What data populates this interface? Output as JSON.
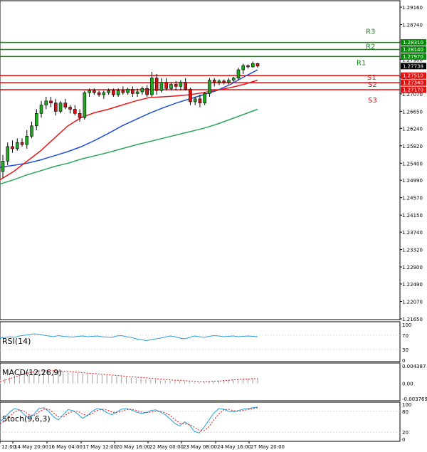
{
  "chart_data": {
    "type": "candlestick",
    "instrument_timeframe": "H4",
    "main": {
      "price_axis": {
        "ticks": [
          "1.29160",
          "1.28740",
          "1.28320",
          "1.27900",
          "1.27480",
          "1.27070",
          "1.26650",
          "1.26240",
          "1.25820",
          "1.25400",
          "1.24990",
          "1.24570",
          "1.24150",
          "1.23740",
          "1.23320",
          "1.22900",
          "1.22490",
          "1.22070",
          "1.21650"
        ],
        "range": [
          1.2165,
          1.2916
        ]
      },
      "current_price_label": "1.27738",
      "levels": [
        {
          "label": "R3",
          "price": 1.2831,
          "price_label": "1.28310",
          "color": "#0a8a0a"
        },
        {
          "label": "R2",
          "price": 1.2814,
          "price_label": "1.28140",
          "color": "#0a8a0a"
        },
        {
          "label": "R1",
          "price": 1.2797,
          "price_label": "1.27970",
          "color": "#0a8a0a"
        },
        {
          "label": "S1",
          "price": 1.2751,
          "price_label": "1.27510",
          "color": "#e01010"
        },
        {
          "label": "S2",
          "price": 1.2734,
          "price_label": "1.27340",
          "color": "#e01010"
        },
        {
          "label": "S3",
          "price": 1.2717,
          "price_label": "1.27170",
          "color": "#e01010"
        }
      ],
      "candles": [
        [
          1.252,
          1.256,
          1.2505,
          1.2545
        ],
        [
          1.2545,
          1.259,
          1.2535,
          1.258
        ],
        [
          1.258,
          1.2595,
          1.2565,
          1.2575
        ],
        [
          1.2575,
          1.26,
          1.257,
          1.259
        ],
        [
          1.259,
          1.26,
          1.258,
          1.2585
        ],
        [
          1.2585,
          1.262,
          1.2575,
          1.2605
        ],
        [
          1.2605,
          1.264,
          1.26,
          1.263
        ],
        [
          1.263,
          1.267,
          1.262,
          1.266
        ],
        [
          1.266,
          1.269,
          1.265,
          1.268
        ],
        [
          1.268,
          1.27,
          1.267,
          1.269
        ],
        [
          1.269,
          1.27,
          1.2675,
          1.2685
        ],
        [
          1.2685,
          1.2695,
          1.2655,
          1.2665
        ],
        [
          1.2665,
          1.269,
          1.266,
          1.2685
        ],
        [
          1.2685,
          1.2695,
          1.267,
          1.2675
        ],
        [
          1.2675,
          1.268,
          1.266,
          1.267
        ],
        [
          1.267,
          1.268,
          1.2655,
          1.266
        ],
        [
          1.266,
          1.267,
          1.264,
          1.265
        ],
        [
          1.265,
          1.2715,
          1.2645,
          1.271
        ],
        [
          1.271,
          1.272,
          1.27,
          1.2715
        ],
        [
          1.2715,
          1.272,
          1.2705,
          1.271
        ],
        [
          1.271,
          1.2715,
          1.27,
          1.2705
        ],
        [
          1.2705,
          1.2715,
          1.2695,
          1.271
        ],
        [
          1.271,
          1.272,
          1.2705,
          1.2715
        ],
        [
          1.2715,
          1.272,
          1.27,
          1.2705
        ],
        [
          1.2705,
          1.272,
          1.27,
          1.2715
        ],
        [
          1.2715,
          1.2725,
          1.2705,
          1.271
        ],
        [
          1.271,
          1.2722,
          1.2705,
          1.2718
        ],
        [
          1.2718,
          1.2725,
          1.27,
          1.2708
        ],
        [
          1.2708,
          1.272,
          1.27,
          1.2712
        ],
        [
          1.2712,
          1.2725,
          1.2705,
          1.272
        ],
        [
          1.272,
          1.2728,
          1.27,
          1.2705
        ],
        [
          1.2705,
          1.276,
          1.27,
          1.2745
        ],
        [
          1.2745,
          1.2755,
          1.2705,
          1.2715
        ],
        [
          1.2715,
          1.2745,
          1.271,
          1.2735
        ],
        [
          1.2735,
          1.2745,
          1.2715,
          1.272
        ],
        [
          1.272,
          1.2735,
          1.2715,
          1.273
        ],
        [
          1.273,
          1.2738,
          1.2715,
          1.2725
        ],
        [
          1.2725,
          1.274,
          1.2715,
          1.2735
        ],
        [
          1.2735,
          1.2745,
          1.2715,
          1.2718
        ],
        [
          1.2718,
          1.2722,
          1.268,
          1.2688
        ],
        [
          1.2688,
          1.27,
          1.268,
          1.2695
        ],
        [
          1.2695,
          1.2705,
          1.2675,
          1.2685
        ],
        [
          1.2685,
          1.2712,
          1.268,
          1.2708
        ],
        [
          1.2708,
          1.2745,
          1.27,
          1.274
        ],
        [
          1.274,
          1.2745,
          1.2725,
          1.2735
        ],
        [
          1.2735,
          1.2742,
          1.2728,
          1.2738
        ],
        [
          1.2738,
          1.2742,
          1.273,
          1.2735
        ],
        [
          1.2735,
          1.2745,
          1.273,
          1.274
        ],
        [
          1.274,
          1.2748,
          1.2735,
          1.2745
        ],
        [
          1.2745,
          1.277,
          1.274,
          1.2765
        ],
        [
          1.2765,
          1.278,
          1.2755,
          1.2775
        ],
        [
          1.2775,
          1.2778,
          1.2768,
          1.2772
        ],
        [
          1.2772,
          1.2785,
          1.277,
          1.278
        ],
        [
          1.278,
          1.2782,
          1.277,
          1.2774
        ]
      ],
      "ma_fast_red": [
        1.25,
        1.252,
        1.2545,
        1.257,
        1.26,
        1.263,
        1.265,
        1.2662,
        1.267,
        1.268,
        1.269,
        1.2698,
        1.27,
        1.2702,
        1.2705,
        1.271,
        1.2716,
        1.2722,
        1.273,
        1.274
      ],
      "ma_mid_blue": [
        1.253,
        1.2535,
        1.254,
        1.2548,
        1.2558,
        1.2568,
        1.258,
        1.2595,
        1.2612,
        1.263,
        1.2645,
        1.266,
        1.2673,
        1.2685,
        1.2695,
        1.2705,
        1.2715,
        1.273,
        1.2748,
        1.2765
      ],
      "ma_slow_green": [
        1.249,
        1.25,
        1.2512,
        1.2522,
        1.2532,
        1.254,
        1.255,
        1.2558,
        1.2566,
        1.2575,
        1.2584,
        1.2592,
        1.26,
        1.2608,
        1.2616,
        1.2624,
        1.2634,
        1.2646,
        1.2658,
        1.267
      ]
    },
    "rsi": {
      "title": "RSI(14)",
      "ticks": [
        "100",
        "70",
        "30",
        "0"
      ],
      "values": [
        62,
        64,
        66,
        64,
        68,
        70,
        72,
        74,
        73,
        70,
        68,
        66,
        69,
        67,
        66,
        65,
        67,
        68,
        66,
        67,
        68,
        66,
        65,
        64,
        68,
        69,
        66,
        64,
        60,
        58,
        55,
        57,
        60,
        62,
        65,
        68,
        66,
        62,
        60,
        64,
        68,
        66,
        64,
        67,
        69,
        68,
        66,
        67,
        68,
        66,
        67,
        68,
        67,
        66
      ]
    },
    "macd": {
      "title": "MACD(12,26,9)",
      "ticks": [
        "0.004387",
        "0.00",
        "-0.003769"
      ],
      "histogram": [
        0.0008,
        0.0012,
        0.0016,
        0.002,
        0.0024,
        0.0028,
        0.003,
        0.0032,
        0.0033,
        0.0033,
        0.0032,
        0.0031,
        0.003,
        0.0029,
        0.0028,
        0.0027,
        0.0026,
        0.0025,
        0.0024,
        0.0023,
        0.0022,
        0.0021,
        0.002,
        0.0019,
        0.0018,
        0.0017,
        0.0016,
        0.0015,
        0.0014,
        0.0012,
        0.0011,
        0.001,
        0.0009,
        0.0008,
        0.0008,
        0.0007,
        0.0006,
        0.0006,
        0.0005,
        0.0004,
        0.0003,
        0.0003,
        0.0004,
        0.0005,
        0.0006,
        0.0007,
        0.0008,
        0.0009,
        0.001,
        0.0011,
        0.0012,
        0.0012,
        0.0013,
        0.0013
      ],
      "signal": [
        0.0004,
        0.0008,
        0.0012,
        0.0016,
        0.002,
        0.0024,
        0.0027,
        0.0029,
        0.0031,
        0.0032,
        0.0032,
        0.0032,
        0.0031,
        0.0031,
        0.003,
        0.0029,
        0.0028,
        0.0027,
        0.0026,
        0.0025,
        0.0024,
        0.0023,
        0.0022,
        0.0021,
        0.002,
        0.0019,
        0.0018,
        0.0017,
        0.0016,
        0.0015,
        0.0014,
        0.0013,
        0.0012,
        0.0011,
        0.001,
        0.0009,
        0.0008,
        0.0008,
        0.0007,
        0.0006,
        0.0006,
        0.0005,
        0.0005,
        0.0005,
        0.0006,
        0.0006,
        0.0007,
        0.0008,
        0.0009,
        0.001,
        0.0011,
        0.0011,
        0.0012,
        0.0012
      ]
    },
    "stoch": {
      "title": "Stoch(9,6,3)",
      "ticks": [
        "100",
        "80",
        "20",
        "0"
      ],
      "k": [
        50,
        62,
        78,
        88,
        84,
        70,
        60,
        72,
        88,
        90,
        80,
        64,
        55,
        70,
        85,
        82,
        72,
        60,
        68,
        80,
        88,
        85,
        76,
        70,
        78,
        86,
        88,
        84,
        78,
        74,
        76,
        82,
        84,
        78,
        70,
        58,
        45,
        38,
        50,
        40,
        22,
        18,
        35,
        55,
        75,
        88,
        86,
        80,
        78,
        82,
        86,
        88,
        90,
        92
      ],
      "d": [
        44,
        52,
        65,
        78,
        84,
        80,
        70,
        68,
        78,
        86,
        86,
        76,
        64,
        64,
        74,
        80,
        80,
        72,
        68,
        74,
        82,
        86,
        84,
        78,
        76,
        80,
        85,
        86,
        82,
        78,
        76,
        78,
        80,
        80,
        76,
        68,
        56,
        46,
        44,
        42,
        34,
        26,
        24,
        36,
        55,
        72,
        84,
        86,
        82,
        80,
        82,
        85,
        88,
        90
      ]
    },
    "time_axis": [
      "12:00",
      "14 May 20:00",
      "16 May 04:00",
      "17 May 12:00",
      "20 May 16:00",
      "22 May 00:00",
      "23 May 08:00",
      "24 May 16:00",
      "27 May 20:00"
    ]
  }
}
